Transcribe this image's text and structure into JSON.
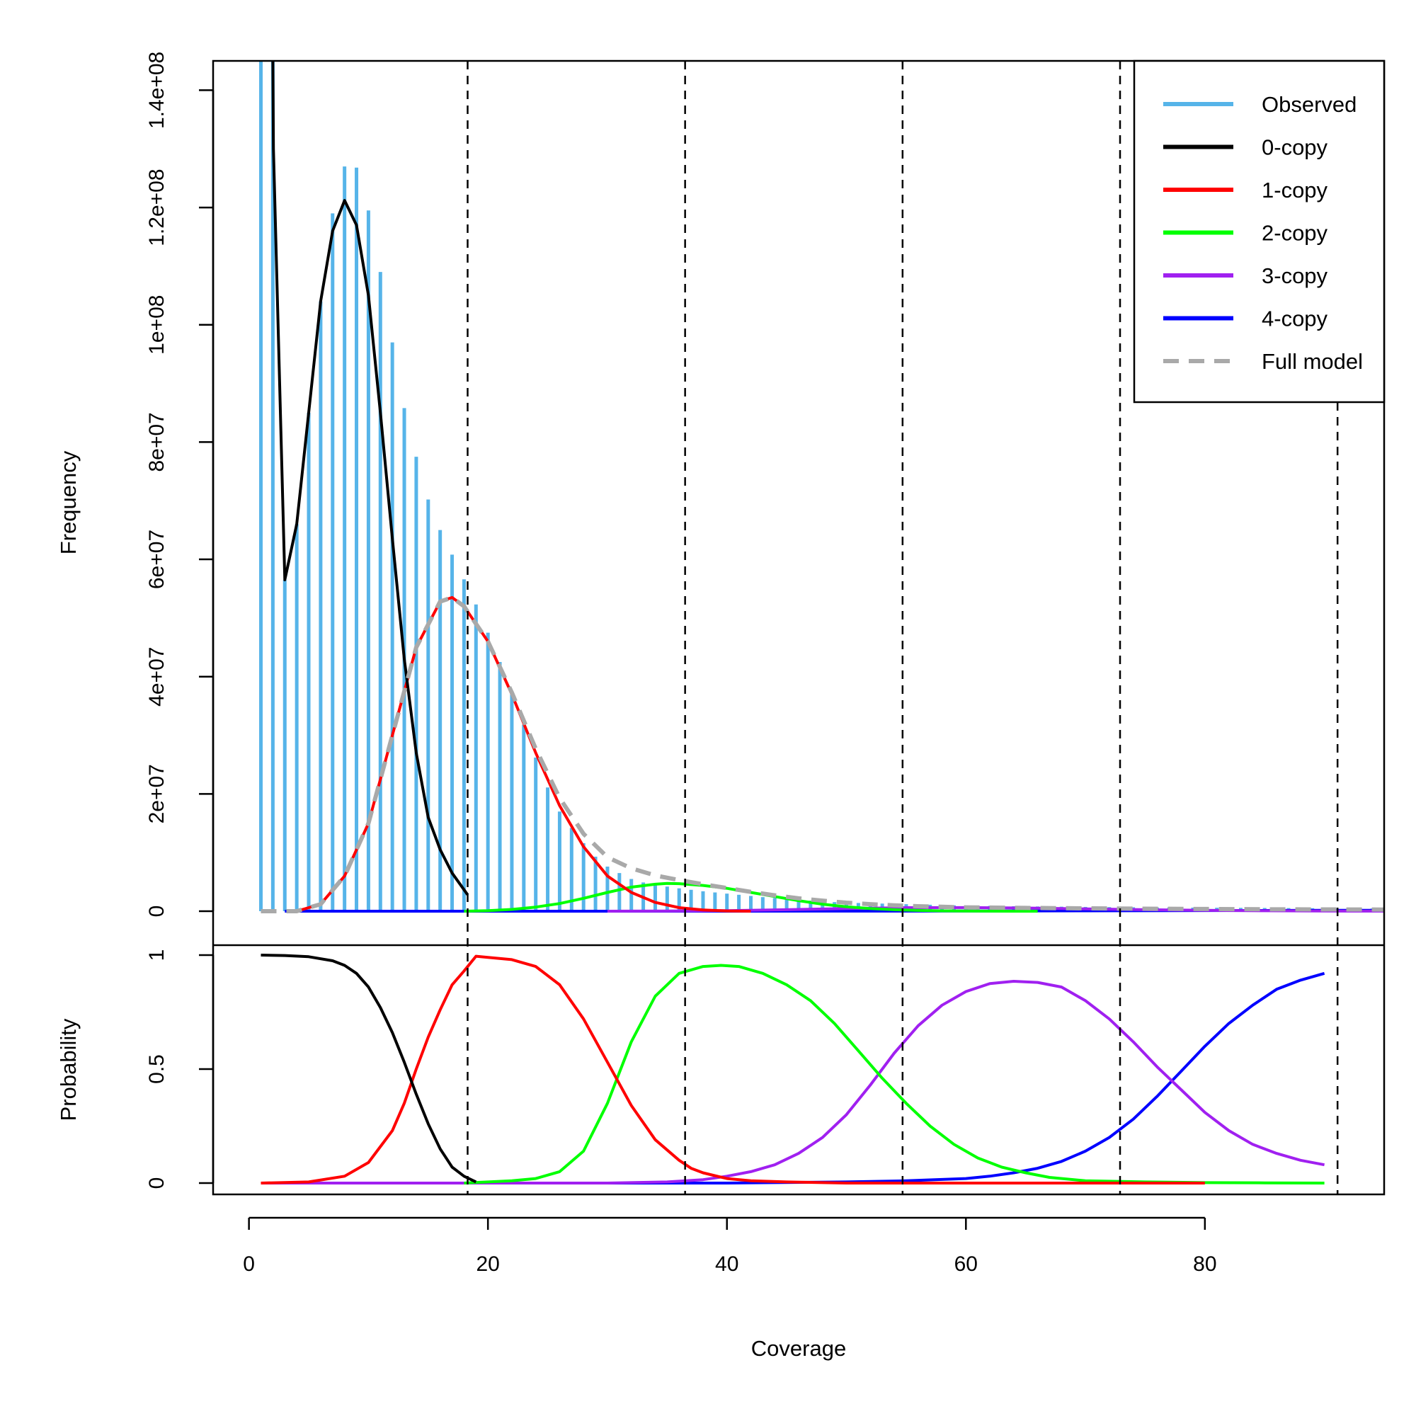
{
  "chart_data": {
    "type": "line",
    "xlabel": "Coverage",
    "xlim": [
      -3,
      95
    ],
    "x_ticks": [
      "0",
      "20",
      "40",
      "60",
      "80"
    ],
    "x_tick_values": [
      0,
      20,
      40,
      60,
      80
    ],
    "grid": false,
    "cutoff_lines_x": [
      18.3,
      36.5,
      54.7,
      72.9,
      91.1
    ],
    "colors": {
      "observed": "#56B4E9",
      "copy0": "#000000",
      "copy1": "#FF0000",
      "copy2": "#00FF00",
      "copy3": "#A020F0",
      "copy4": "#0000FF",
      "full_model": "#A9A9A9",
      "cutoff": "#000000"
    },
    "legend": {
      "placement": "top-right",
      "entries": [
        "Observed",
        "0-copy",
        "1-copy",
        "2-copy",
        "3-copy",
        "4-copy",
        "Full model"
      ]
    },
    "panels": [
      {
        "name": "frequency",
        "ylabel": "Frequency",
        "ylim": [
          0,
          145000000.0
        ],
        "y_ticks": [
          "0",
          "2e+07",
          "4e+07",
          "6e+07",
          "8e+07",
          "1e+08",
          "1.2e+08",
          "1.4e+08"
        ],
        "y_tick_values": [
          0,
          20000000.0,
          40000000.0,
          60000000.0,
          80000000.0,
          100000000.0,
          120000000.0,
          140000000.0
        ],
        "observed": {
          "x": [
            1,
            2,
            3,
            4,
            5,
            6,
            7,
            8,
            9,
            10,
            11,
            12,
            13,
            14,
            15,
            16,
            17,
            18,
            19,
            20,
            21,
            22,
            23,
            24,
            25,
            26,
            27,
            28,
            29,
            30,
            31,
            32,
            33,
            34,
            35,
            36,
            37,
            38,
            39,
            40,
            41,
            42,
            43,
            44,
            45,
            46,
            47,
            48,
            49,
            50,
            51,
            52,
            53,
            54,
            55,
            56,
            57,
            58,
            59,
            60,
            61,
            62,
            63,
            64,
            65,
            66,
            67,
            68,
            69,
            70,
            71,
            72,
            73,
            74,
            75,
            76,
            77,
            78,
            79,
            80,
            81,
            82,
            83,
            84,
            85,
            86,
            87,
            88,
            89,
            90,
            91,
            92,
            93,
            94,
            95
          ],
          "y": [
            145000000,
            145000000,
            56500000,
            66000000,
            85000000,
            104000000,
            119000000,
            127000000,
            126800000,
            119500000,
            109000000,
            97000000,
            85800000,
            77500000,
            70200000,
            65000000,
            60800000,
            56600000,
            52300000,
            47500000,
            42500000,
            37300000,
            31800000,
            26200000,
            21100000,
            17000000,
            14200000,
            11600000,
            9300000,
            7600000,
            6500000,
            5500000,
            4900000,
            4500000,
            4200000,
            3900000,
            3650000,
            3400000,
            3200000,
            3000000,
            2800000,
            2600000,
            2400000,
            2250000,
            2100000,
            1950000,
            1800000,
            1650000,
            1550000,
            1450000,
            1400000,
            1350000,
            1300000,
            1250000,
            1200000,
            1150000,
            1100000,
            1050000,
            1000000,
            970000,
            940000,
            910000,
            880000,
            850000,
            830000,
            810000,
            790000,
            770000,
            750000,
            730000,
            710000,
            700000,
            680000,
            670000,
            650000,
            640000,
            630000,
            620000,
            610000,
            600000,
            590000,
            580000,
            570000,
            560000,
            550000,
            540000,
            530000,
            520000,
            510000,
            500000,
            490000,
            480000,
            470000,
            460000,
            450000
          ]
        },
        "copy0": {
          "x": [
            2,
            2.05,
            3,
            4,
            5,
            6,
            7,
            8,
            9,
            10,
            11,
            12,
            13,
            14,
            15,
            16,
            17,
            18.3
          ],
          "y": [
            145000000,
            130000000,
            56500000,
            66000000,
            85000000,
            104000000,
            116000000,
            121200000,
            117000000,
            105000000,
            85000000,
            63500000,
            43000000,
            27000000,
            16000000,
            10500000,
            6500000,
            2800000
          ]
        },
        "copy1": {
          "x": [
            4,
            6,
            8,
            10,
            12,
            14,
            16,
            17,
            18,
            20,
            22,
            24,
            26,
            28,
            30,
            32,
            34,
            36,
            38,
            40,
            42
          ],
          "y": [
            0,
            1200000,
            6000000,
            15000000,
            30000000,
            45000000,
            52800000,
            53500000,
            52000000,
            46000000,
            37000000,
            27000000,
            18000000,
            11000000,
            6000000,
            3200000,
            1500000,
            600000,
            200000,
            50000,
            0
          ]
        },
        "copy2": {
          "x": [
            18,
            20,
            22,
            24,
            26,
            28,
            30,
            32,
            34,
            35,
            36,
            38,
            40,
            42,
            44,
            46,
            48,
            50,
            52,
            54,
            56,
            58,
            60,
            62,
            64,
            66
          ],
          "y": [
            0,
            100000,
            300000,
            700000,
            1300000,
            2200000,
            3200000,
            4100000,
            4600000,
            4750000,
            4700000,
            4400000,
            3900000,
            3200000,
            2500000,
            1800000,
            1200000,
            750000,
            450000,
            250000,
            130000,
            60000,
            30000,
            15000,
            5000,
            0
          ]
        },
        "copy3": {
          "x": [
            30,
            35,
            40,
            45,
            50,
            55,
            60,
            65,
            70,
            75,
            80,
            85,
            90,
            95
          ],
          "y": [
            0,
            30000,
            100000,
            250000,
            450000,
            600000,
            620000,
            540000,
            400000,
            250000,
            140000,
            70000,
            30000,
            10000
          ]
        },
        "copy4": {
          "x": [
            3,
            20,
            40,
            60,
            70,
            80,
            90,
            95
          ],
          "y": [
            0,
            0,
            0,
            20000,
            60000,
            110000,
            140000,
            140000
          ]
        },
        "full_model": {
          "x": [
            1,
            3,
            4,
            6,
            8,
            10,
            12,
            14,
            16,
            17,
            18,
            20,
            22,
            24,
            26,
            28,
            30,
            32,
            34,
            36,
            38,
            40,
            42,
            44,
            46,
            48,
            50,
            52,
            54,
            56,
            58,
            60,
            65,
            70,
            75,
            80,
            85,
            90,
            95
          ],
          "y": [
            0,
            0,
            0,
            1200000,
            6000000,
            15000000,
            30000000,
            45000000,
            52800000,
            53500000,
            52000000,
            46000000,
            37300000,
            27700000,
            19300000,
            13200000,
            9200000,
            7300000,
            6100000,
            5300000,
            4600000,
            3950000,
            3300000,
            2700000,
            2200000,
            1800000,
            1450000,
            1200000,
            1000000,
            850000,
            750000,
            650000,
            550000,
            480000,
            420000,
            380000,
            330000,
            300000,
            280000
          ]
        }
      },
      {
        "name": "probability",
        "ylabel": "Probability",
        "ylim": [
          0,
          1
        ],
        "y_ticks": [
          "0",
          "0.5",
          "1"
        ],
        "y_tick_values": [
          0,
          0.5,
          1
        ],
        "copy0": {
          "x": [
            1,
            3,
            5,
            7,
            8,
            9,
            10,
            11,
            12,
            13,
            14,
            15,
            16,
            17,
            18,
            19
          ],
          "y": [
            1,
            0.998,
            0.993,
            0.975,
            0.955,
            0.92,
            0.86,
            0.77,
            0.66,
            0.53,
            0.39,
            0.26,
            0.15,
            0.07,
            0.03,
            0.005
          ]
        },
        "copy1": {
          "x": [
            1,
            5,
            8,
            10,
            12,
            13,
            14,
            15,
            16,
            17,
            18,
            19,
            20,
            22,
            24,
            26,
            28,
            30,
            32,
            34,
            36,
            37,
            38,
            40,
            42,
            45,
            50,
            60,
            70,
            80
          ],
          "y": [
            0,
            0.005,
            0.03,
            0.09,
            0.23,
            0.35,
            0.5,
            0.64,
            0.76,
            0.87,
            0.93,
            0.995,
            0.99,
            0.98,
            0.95,
            0.87,
            0.72,
            0.53,
            0.34,
            0.19,
            0.1,
            0.065,
            0.045,
            0.02,
            0.01,
            0.005,
            0,
            0,
            0,
            0
          ]
        },
        "copy2": {
          "x": [
            18,
            20,
            22,
            24,
            26,
            28,
            30,
            32,
            34,
            36,
            38,
            39.5,
            41,
            43,
            45,
            47,
            49,
            51,
            53,
            55,
            57,
            59,
            61,
            63,
            65,
            67,
            70,
            75,
            80,
            85,
            90
          ],
          "y": [
            0,
            0.005,
            0.01,
            0.02,
            0.05,
            0.14,
            0.35,
            0.62,
            0.82,
            0.92,
            0.95,
            0.955,
            0.95,
            0.92,
            0.87,
            0.8,
            0.7,
            0.58,
            0.46,
            0.35,
            0.25,
            0.17,
            0.11,
            0.07,
            0.045,
            0.025,
            0.01,
            0.005,
            0.002,
            0.001,
            0
          ]
        },
        "copy3": {
          "x": [
            1,
            30,
            35,
            38,
            40,
            42,
            44,
            46,
            48,
            50,
            52,
            54,
            56,
            58,
            60,
            62,
            64,
            66,
            68,
            70,
            72,
            74,
            76,
            78,
            80,
            82,
            84,
            86,
            88,
            90
          ],
          "y": [
            0,
            0,
            0.005,
            0.015,
            0.03,
            0.05,
            0.08,
            0.13,
            0.2,
            0.3,
            0.43,
            0.57,
            0.69,
            0.78,
            0.84,
            0.875,
            0.885,
            0.88,
            0.86,
            0.8,
            0.72,
            0.62,
            0.51,
            0.41,
            0.31,
            0.23,
            0.17,
            0.13,
            0.1,
            0.08
          ]
        },
        "copy4": {
          "x": [
            1,
            40,
            50,
            55,
            60,
            62,
            64,
            66,
            68,
            70,
            72,
            74,
            76,
            78,
            80,
            82,
            84,
            86,
            88,
            90
          ],
          "y": [
            0,
            0,
            0.005,
            0.01,
            0.02,
            0.03,
            0.045,
            0.065,
            0.095,
            0.14,
            0.2,
            0.28,
            0.38,
            0.49,
            0.6,
            0.7,
            0.78,
            0.85,
            0.89,
            0.92
          ]
        }
      }
    ]
  }
}
